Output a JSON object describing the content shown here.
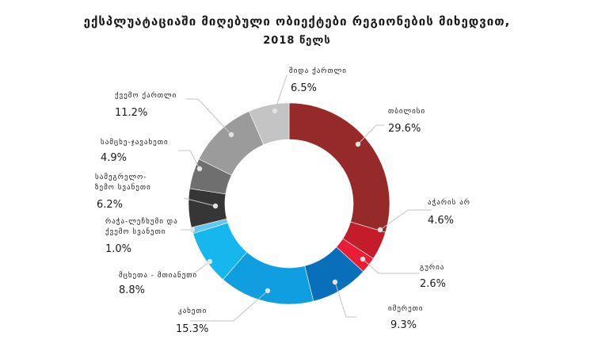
{
  "chart_data": {
    "type": "pie",
    "subtype": "donut",
    "title": "ექსპლუატაციაში მიღებული ობიექტები რეგიონების მიხედვით,",
    "subtitle": "2018 წელს",
    "slices": [
      {
        "label": "თბილისი",
        "value": 29.6,
        "display": "29.6%",
        "color": "#962a2b"
      },
      {
        "label": "აჭარის არ",
        "value": 4.6,
        "display": "4.6%",
        "color": "#c41c2a"
      },
      {
        "label": "გურია",
        "value": 2.6,
        "display": "2.6%",
        "color": "#ea1c36"
      },
      {
        "label": "იმერეთი",
        "value": 9.3,
        "display": "9.3%",
        "color": "#0870bb"
      },
      {
        "label": "კახეთი",
        "value": 15.3,
        "display": "15.3%",
        "color": "#0f9ee0"
      },
      {
        "label": "მცხეთა - მთიანეთი",
        "value": 8.8,
        "display": "8.8%",
        "color": "#16b7ef"
      },
      {
        "label": "რაჭა-ლეჩხუმი და ქვემო სვანეთი",
        "label_lines": [
          "რაჭა-ლეჩხუმი და",
          "ქვემო სვანეთი"
        ],
        "value": 1.0,
        "display": "1.0%",
        "color": "#62c7f2"
      },
      {
        "label": "სამეგრელო-ზემო სვანეთი",
        "label_lines": [
          "სამეგრელო-",
          "ზემო სვანეთი"
        ],
        "value": 6.2,
        "display": "6.2%",
        "color": "#363636"
      },
      {
        "label": "სამცხე-ჯავახეთი",
        "value": 4.9,
        "display": "4.9%",
        "color": "#6f6f6f"
      },
      {
        "label": "ქვემო ქართლი",
        "value": 11.2,
        "display": "11.2%",
        "color": "#9b9b9b"
      },
      {
        "label": "შიდა ქართლი",
        "value": 6.5,
        "display": "6.5%",
        "color": "#c4c4c4"
      }
    ]
  }
}
